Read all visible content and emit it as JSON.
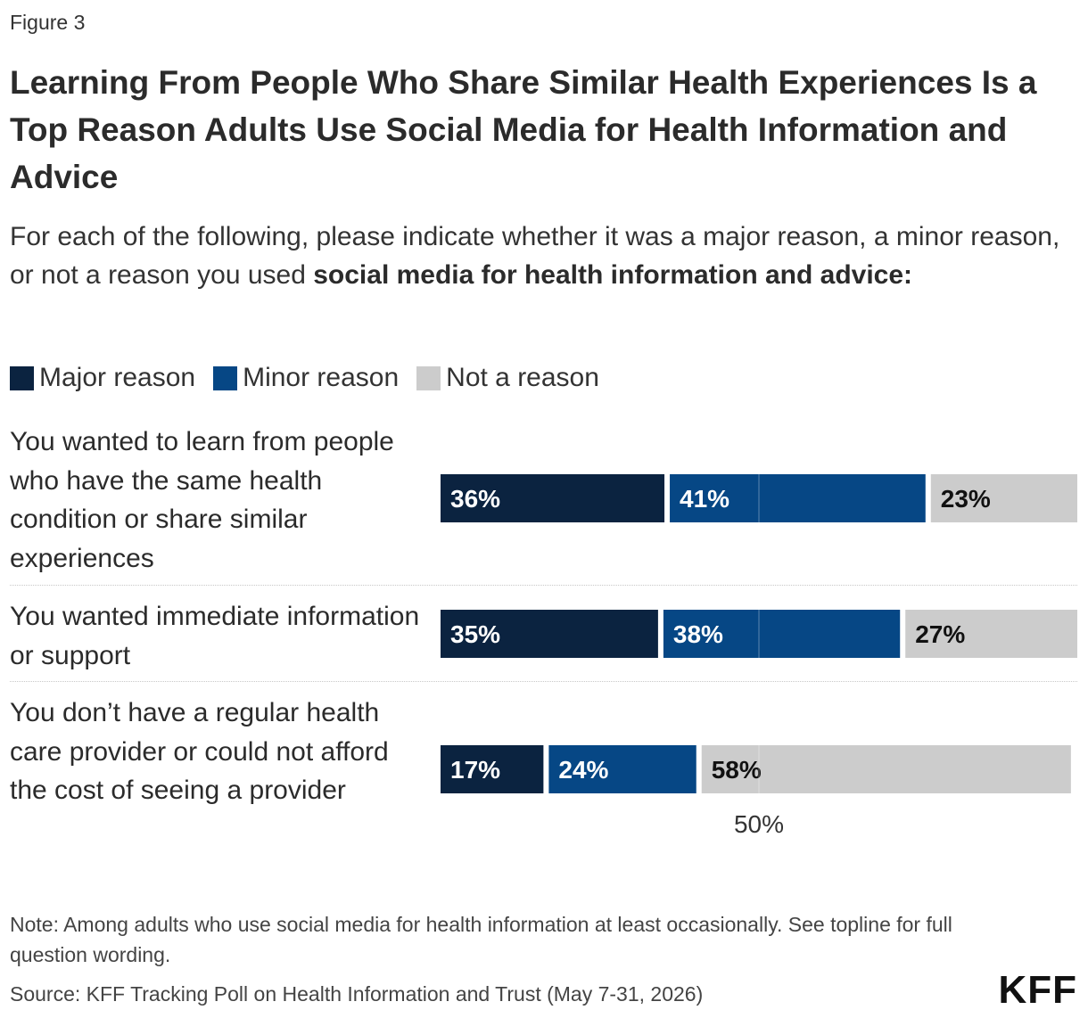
{
  "header": {
    "figure_label": "Figure 3",
    "title": "Learning From People Who Share Similar Health Experiences Is a Top Reason Adults Use Social Media for Health Information and Advice",
    "subtitle_plain": "For each of the following, please indicate whether it was a major reason, a minor reason, or not a reason you used ",
    "subtitle_bold": "social media for health information and advice:"
  },
  "colors": {
    "major": "#0b2340",
    "minor": "#064785",
    "not": "#cccccc",
    "text_light": "#ffffff",
    "text_dark": "#111111"
  },
  "chart_data": {
    "type": "bar",
    "orientation": "horizontal",
    "stacked": true,
    "categories": [
      "You wanted to learn from people who have the same health condition or share similar experiences",
      "You wanted immediate information or support",
      "You don’t have a regular health care provider or could not afford the cost of seeing a provider"
    ],
    "series": [
      {
        "name": "Major reason",
        "values": [
          36,
          35,
          17
        ]
      },
      {
        "name": "Minor reason",
        "values": [
          41,
          38,
          24
        ]
      },
      {
        "name": "Not a reason",
        "values": [
          23,
          27,
          58
        ]
      }
    ],
    "value_labels": [
      [
        "36%",
        "41%",
        "23%"
      ],
      [
        "35%",
        "38%",
        "27%"
      ],
      [
        "17%",
        "24%",
        "58%"
      ]
    ],
    "xlim": [
      0,
      100
    ],
    "reference_line": {
      "value": 50,
      "label": "50%"
    },
    "legend_position": "top-left",
    "grid": false
  },
  "footer": {
    "note": "Note: Among adults who use social media for health information at least occasionally. See topline for full question wording.",
    "source": "Source: KFF Tracking Poll on Health Information and Trust (May 7-31, 2026)",
    "logo": "KFF"
  }
}
